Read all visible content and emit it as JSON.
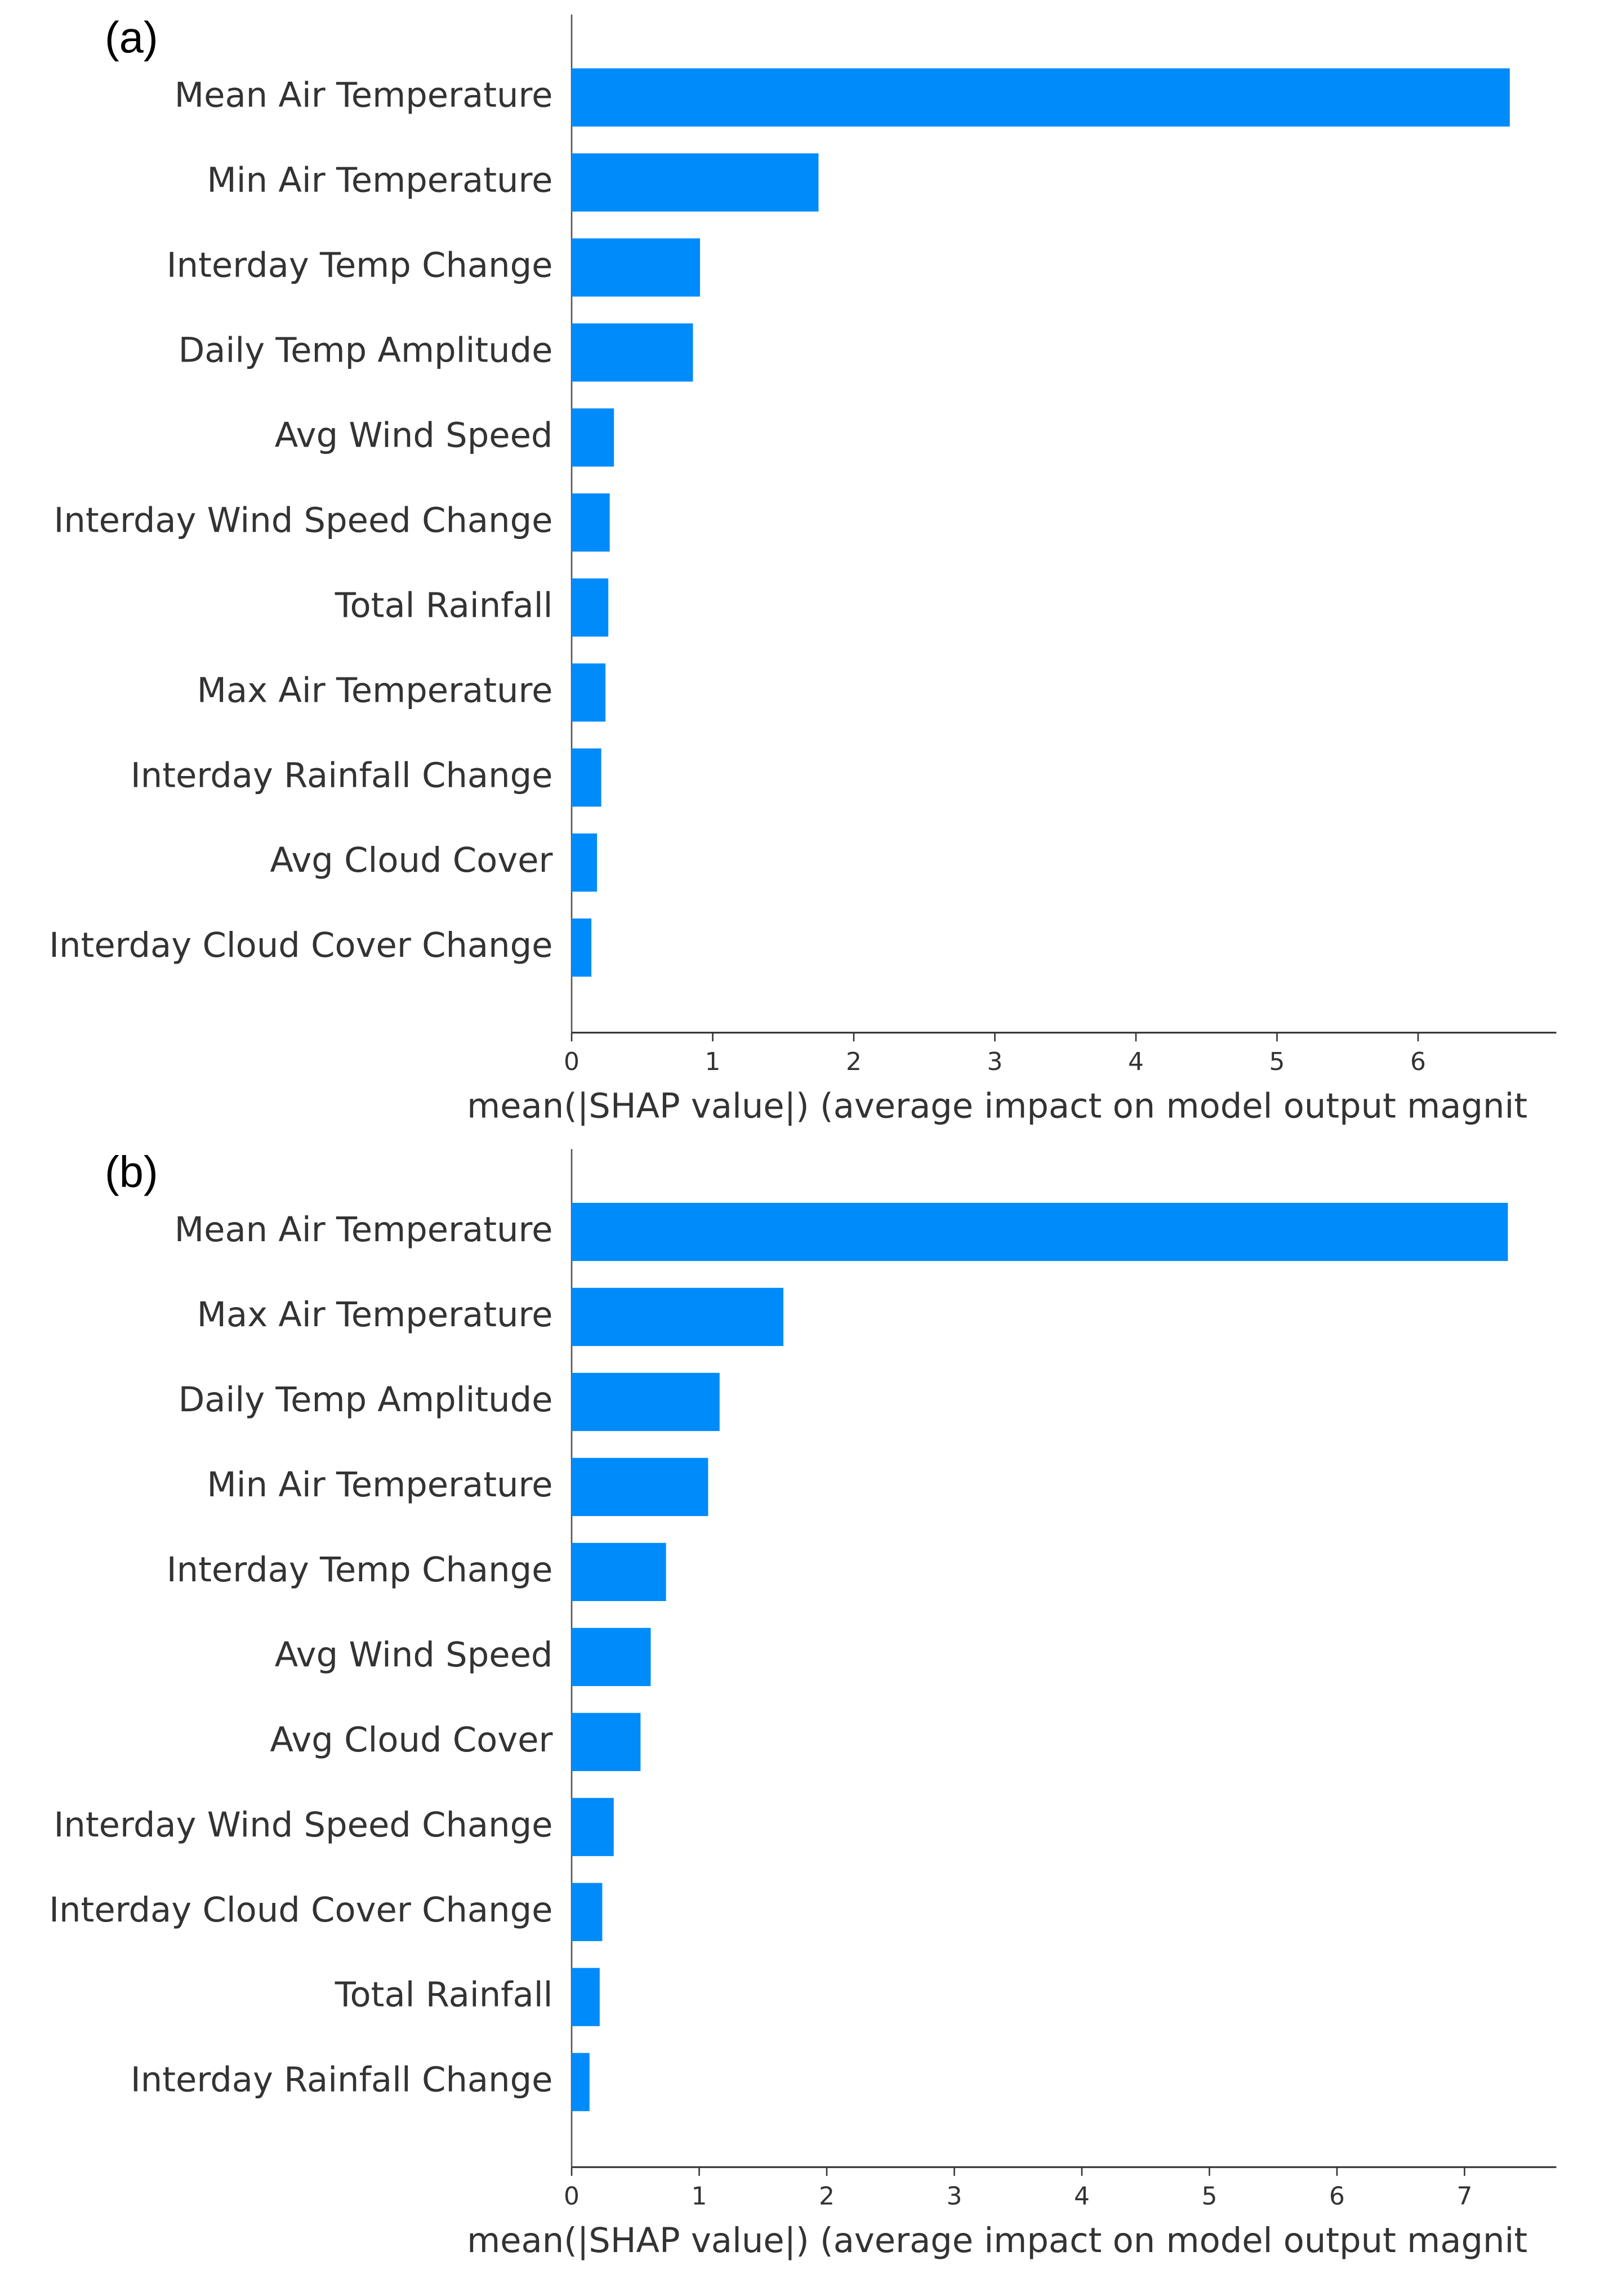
{
  "chart_data": [
    {
      "type": "barh",
      "panel_label": "(a)",
      "categories": [
        "Mean Air Temperature",
        "Min Air Temperature",
        "Interday Temp Change",
        "Daily Temp Amplitude",
        "Avg Wind Speed",
        "Interday Wind Speed Change",
        "Total Rainfall",
        "Max Air Temperature",
        "Interday Rainfall Change",
        "Avg Cloud Cover",
        "Interday Cloud Cover Change"
      ],
      "values": [
        6.65,
        1.75,
        0.91,
        0.86,
        0.3,
        0.27,
        0.26,
        0.24,
        0.21,
        0.18,
        0.14
      ],
      "color": "#008bfb",
      "xlim": [
        0,
        6.98
      ],
      "xticks": [
        0,
        1,
        2,
        3,
        4,
        5,
        6
      ],
      "x_label": "mean(|SHAP value|) (average impact on model output magnit"
    },
    {
      "type": "barh",
      "panel_label": "(b)",
      "categories": [
        "Mean Air Temperature",
        "Max Air Temperature",
        "Daily Temp Amplitude",
        "Min Air Temperature",
        "Interday Temp Change",
        "Avg Wind Speed",
        "Avg Cloud Cover",
        "Interday Wind Speed Change",
        "Interday Cloud Cover Change",
        "Total Rainfall",
        "Interday Rainfall Change"
      ],
      "values": [
        7.34,
        1.66,
        1.16,
        1.07,
        0.74,
        0.62,
        0.54,
        0.33,
        0.24,
        0.22,
        0.14
      ],
      "color": "#008bfb",
      "xlim": [
        0,
        7.72
      ],
      "xticks": [
        0,
        1,
        2,
        3,
        4,
        5,
        6,
        7
      ],
      "x_label": "mean(|SHAP value|) (average impact on model output magnit"
    }
  ]
}
